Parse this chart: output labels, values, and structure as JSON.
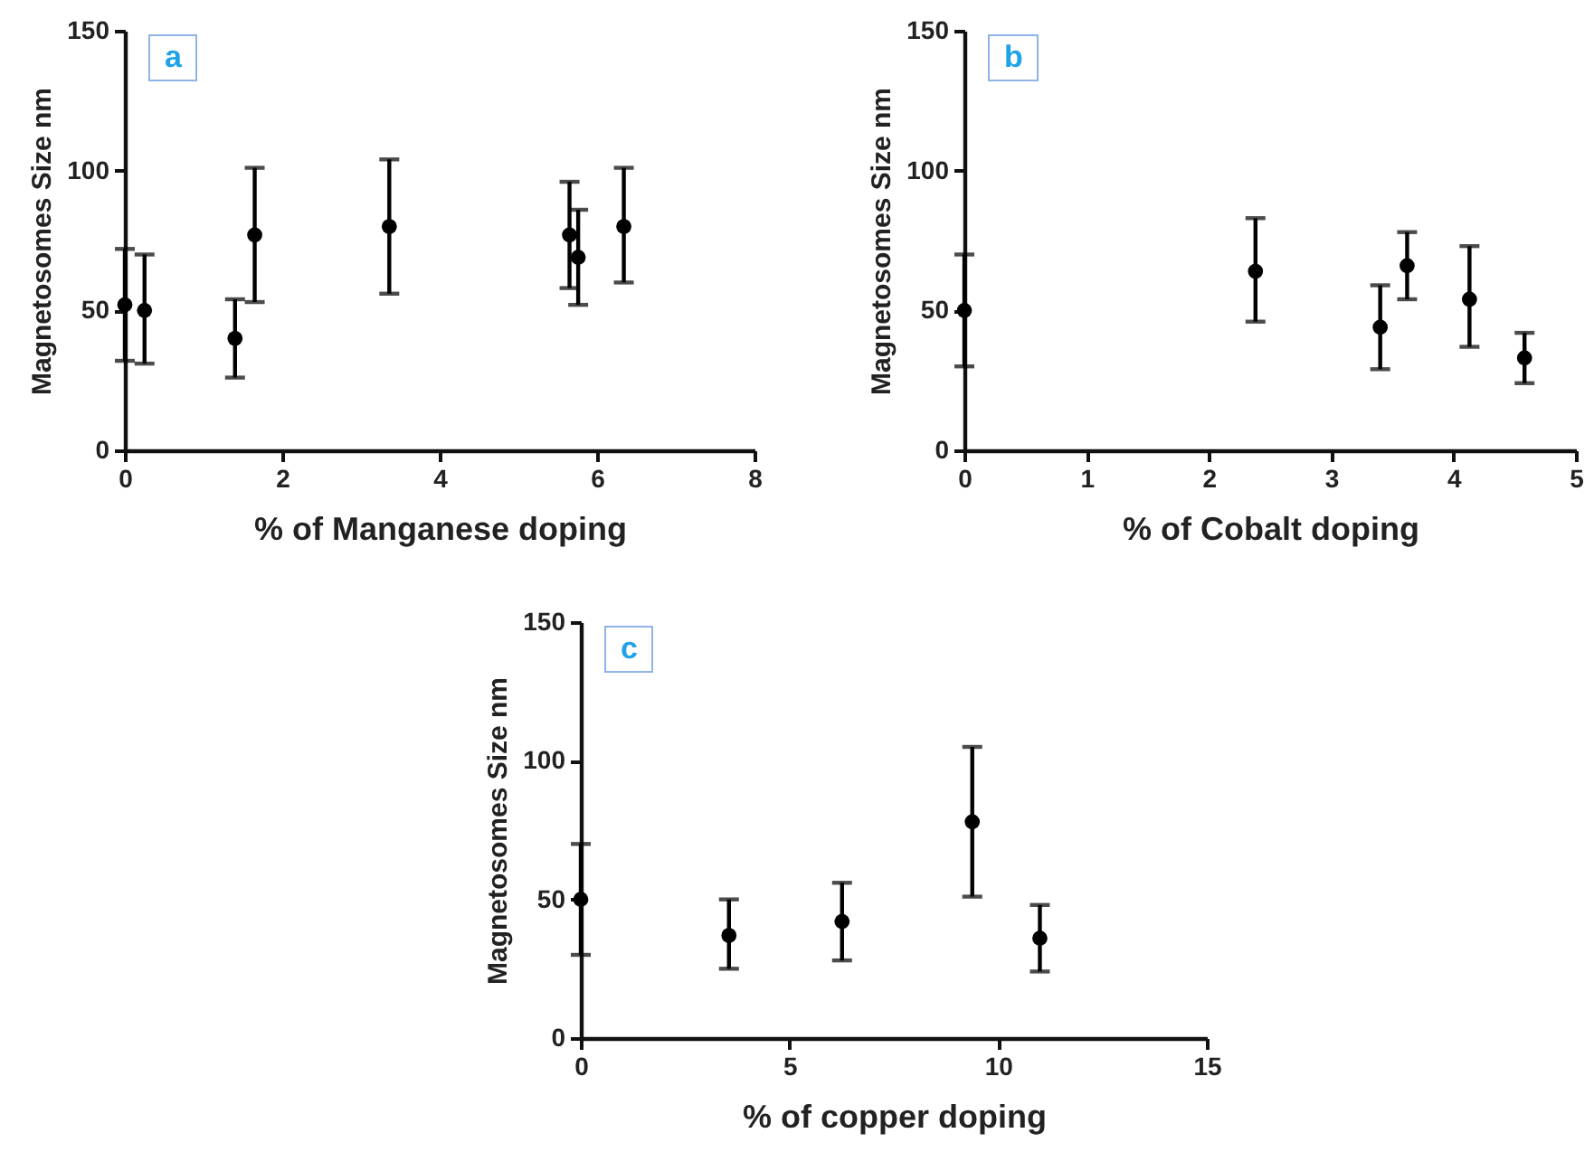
{
  "chart_data": [
    {
      "type": "scatter",
      "xlabel": "% of Manganese doping",
      "ylabel": "Magnetosomes Size nm",
      "annotations": [
        "a"
      ],
      "color": "#000000",
      "marker": "circle",
      "x": [
        0,
        0.25,
        1.4,
        1.65,
        3.36,
        5.65,
        5.76,
        6.34
      ],
      "values": [
        52,
        50,
        40,
        77,
        80,
        77,
        69,
        80
      ],
      "errors": [
        [
          32,
          72
        ],
        [
          31,
          70
        ],
        [
          26,
          54
        ],
        [
          53,
          101
        ],
        [
          56,
          104
        ],
        [
          58,
          96
        ],
        [
          52,
          86
        ],
        [
          60,
          101
        ]
      ],
      "xlim": [
        0,
        8
      ],
      "xticks": [
        0,
        2,
        4,
        6,
        8
      ],
      "ylim": [
        0,
        150
      ],
      "yticks": [
        0,
        50,
        100,
        150
      ]
    },
    {
      "type": "scatter",
      "xlabel": "% of Cobalt doping",
      "ylabel": "Magnetosomes Size nm",
      "annotations": [
        "b"
      ],
      "color": "#000000",
      "marker": "circle",
      "x": [
        0,
        2.38,
        3.4,
        3.62,
        4.13,
        4.58
      ],
      "values": [
        50,
        64,
        44,
        66,
        54,
        33
      ],
      "errors": [
        [
          30,
          70
        ],
        [
          46,
          83
        ],
        [
          29,
          59
        ],
        [
          54,
          78
        ],
        [
          37,
          73
        ],
        [
          24,
          42
        ]
      ],
      "xlim": [
        0,
        5
      ],
      "xticks": [
        0,
        1,
        2,
        3,
        4,
        5
      ],
      "ylim": [
        0,
        150
      ],
      "yticks": [
        0,
        50,
        100,
        150
      ]
    },
    {
      "type": "scatter",
      "xlabel": "% of copper doping",
      "ylabel": "Magnetosomes Size nm",
      "annotations": [
        "c"
      ],
      "color": "#000000",
      "marker": "circle",
      "x": [
        0,
        3.55,
        6.26,
        9.38,
        11.0
      ],
      "values": [
        50,
        37,
        42,
        78,
        36
      ],
      "errors": [
        [
          30,
          70
        ],
        [
          25,
          50
        ],
        [
          28,
          56
        ],
        [
          51,
          105
        ],
        [
          24,
          48
        ]
      ],
      "xlim": [
        0,
        15
      ],
      "xticks": [
        0,
        5,
        10,
        15
      ],
      "ylim": [
        0,
        150
      ],
      "yticks": [
        0,
        50,
        100,
        150
      ]
    }
  ]
}
